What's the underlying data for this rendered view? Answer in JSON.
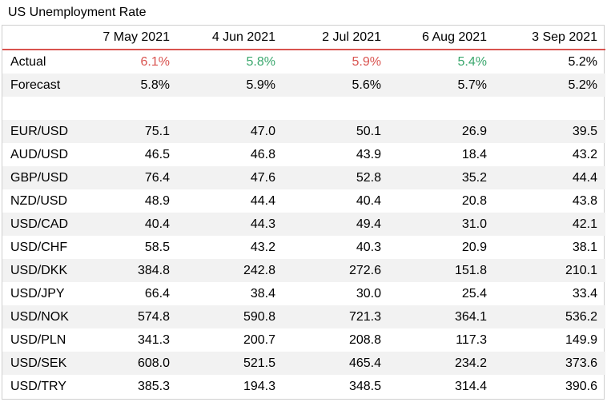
{
  "title": "US Unemployment Rate",
  "columns": [
    "7 May 2021",
    "4 Jun 2021",
    "2 Jul 2021",
    "6 Aug 2021",
    "3 Sep 2021"
  ],
  "actual": {
    "label": "Actual",
    "values": [
      "6.1%",
      "5.8%",
      "5.9%",
      "5.4%",
      "5.2%"
    ],
    "colors": [
      "down",
      "up",
      "down",
      "up",
      ""
    ]
  },
  "forecast": {
    "label": "Forecast",
    "values": [
      "5.8%",
      "5.9%",
      "5.6%",
      "5.7%",
      "5.2%"
    ]
  },
  "pairs": [
    {
      "label": "EUR/USD",
      "values": [
        "75.1",
        "47.0",
        "50.1",
        "26.9",
        "39.5"
      ]
    },
    {
      "label": "AUD/USD",
      "values": [
        "46.5",
        "46.8",
        "43.9",
        "18.4",
        "43.2"
      ]
    },
    {
      "label": "GBP/USD",
      "values": [
        "76.4",
        "47.6",
        "52.8",
        "35.2",
        "44.4"
      ]
    },
    {
      "label": "NZD/USD",
      "values": [
        "48.9",
        "44.4",
        "40.4",
        "20.8",
        "43.8"
      ]
    },
    {
      "label": "USD/CAD",
      "values": [
        "40.4",
        "44.3",
        "49.4",
        "31.0",
        "42.1"
      ]
    },
    {
      "label": "USD/CHF",
      "values": [
        "58.5",
        "43.2",
        "40.3",
        "20.9",
        "38.1"
      ]
    },
    {
      "label": "USD/DKK",
      "values": [
        "384.8",
        "242.8",
        "272.6",
        "151.8",
        "210.1"
      ]
    },
    {
      "label": "USD/JPY",
      "values": [
        "66.4",
        "38.4",
        "30.0",
        "25.4",
        "33.4"
      ]
    },
    {
      "label": "USD/NOK",
      "values": [
        "574.8",
        "590.8",
        "721.3",
        "364.1",
        "536.2"
      ]
    },
    {
      "label": "USD/PLN",
      "values": [
        "341.3",
        "200.7",
        "208.8",
        "117.3",
        "149.9"
      ]
    },
    {
      "label": "USD/SEK",
      "values": [
        "608.0",
        "521.5",
        "465.4",
        "234.2",
        "373.6"
      ]
    },
    {
      "label": "USD/TRY",
      "values": [
        "385.3",
        "194.3",
        "348.5",
        "314.4",
        "390.6"
      ]
    }
  ],
  "colors": {
    "up": "#3aa76d",
    "down": "#d9534f",
    "header_rule": "#d9534f",
    "stripe": "#f2f2f2"
  }
}
